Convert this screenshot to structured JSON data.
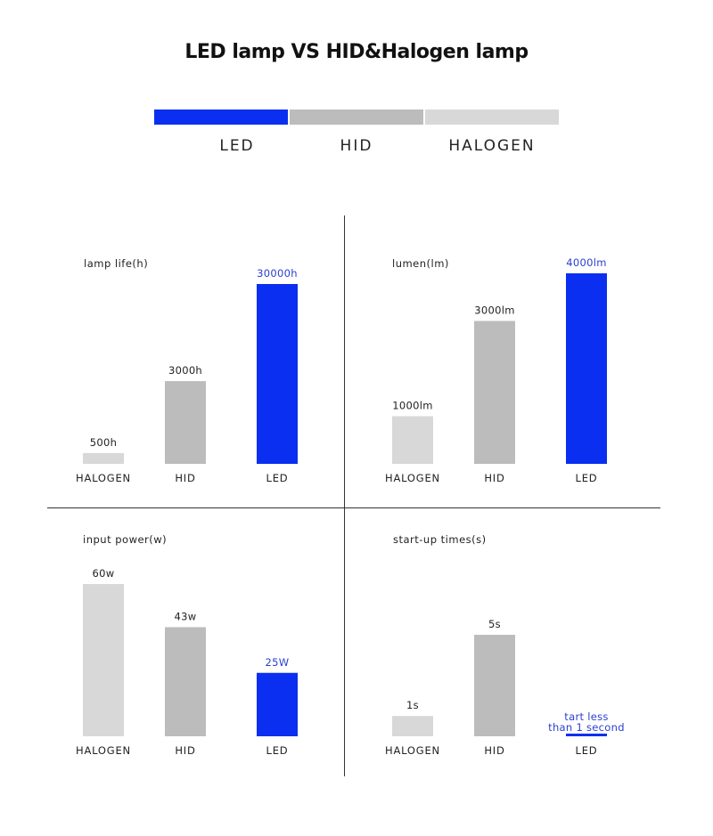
{
  "title": "LED lamp VS HID&Halogen lamp",
  "colors": {
    "LED": "#0a2ff0",
    "HID": "#bcbcbc",
    "HALOGEN": "#d8d8d8",
    "led_text": "#2a3fd0"
  },
  "legend": [
    {
      "label": "LED",
      "color": "#0a2ff0"
    },
    {
      "label": "HID",
      "color": "#bcbcbc"
    },
    {
      "label": "HALOGEN",
      "color": "#d8d8d8"
    }
  ],
  "chart_data": [
    {
      "type": "bar",
      "title": "lamp life(h)",
      "categories": [
        "HALOGEN",
        "HID",
        "LED"
      ],
      "values": [
        500,
        3000,
        30000
      ],
      "value_labels": [
        "500h",
        "3000h",
        "30000h"
      ],
      "note": "bar heights not to linear scale"
    },
    {
      "type": "bar",
      "title": "lumen(lm)",
      "categories": [
        "HALOGEN",
        "HID",
        "LED"
      ],
      "values": [
        1000,
        3000,
        4000
      ],
      "value_labels": [
        "1000lm",
        "3000lm",
        "4000lm"
      ]
    },
    {
      "type": "bar",
      "title": "input power(w)",
      "categories": [
        "HALOGEN",
        "HID",
        "LED"
      ],
      "values": [
        60,
        43,
        25
      ],
      "value_labels": [
        "60w",
        "43w",
        "25W"
      ]
    },
    {
      "type": "bar",
      "title": "start-up times(s)",
      "categories": [
        "HALOGEN",
        "HID",
        "LED"
      ],
      "values": [
        1,
        5,
        0.1
      ],
      "value_labels": [
        "1s",
        "5s",
        "tart less than 1 second"
      ]
    }
  ]
}
